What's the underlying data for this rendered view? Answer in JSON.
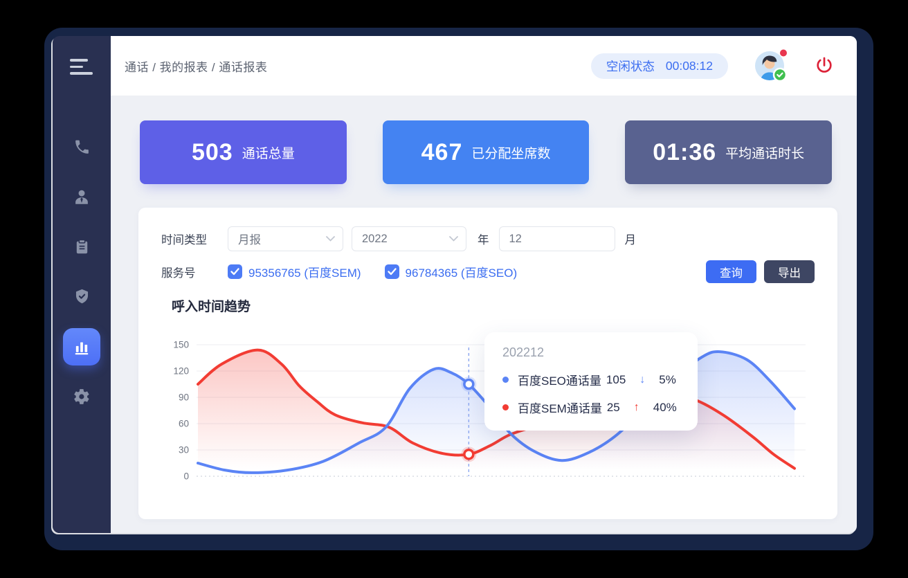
{
  "topbar": {
    "breadcrumb": "通话 / 我的报表 / 通话报表",
    "status_label": "空闲状态",
    "status_time": "00:08:12"
  },
  "sidebar": {
    "icons": [
      "phone-icon",
      "user-icon",
      "clipboard-icon",
      "shield-check-icon",
      "bar-chart-icon",
      "gear-icon"
    ],
    "active_index": 4
  },
  "stat_cards": [
    {
      "value": "503",
      "label": "通话总量",
      "color": "#5e60e7"
    },
    {
      "value": "467",
      "label": "已分配坐席数",
      "color": "#4483f2"
    },
    {
      "value": "01:36",
      "label": "平均通话时长",
      "color": "#596290"
    }
  ],
  "filters": {
    "time_type_label": "时间类型",
    "time_type_value": "月报",
    "year_value": "2022",
    "year_unit": "年",
    "month_value": "12",
    "month_unit": "月",
    "service_label": "服务号",
    "services": [
      {
        "label": "95356765 (百度SEM)",
        "checked": true
      },
      {
        "label": "96784365 (百度SEO)",
        "checked": true
      }
    ],
    "query_button": "查询",
    "export_button": "导出"
  },
  "chart_title": "呼入时间趋势",
  "colors": {
    "status_text": "#3b6df0",
    "power_icon": "#dc2238",
    "link_blue": "#3b6df0"
  },
  "chart_data": {
    "type": "line",
    "title": "呼入时间趋势",
    "ylim": [
      0,
      150
    ],
    "yticks": [
      0,
      30,
      60,
      90,
      120,
      150
    ],
    "grid": true,
    "series": [
      {
        "name": "百度SEO通话量",
        "color": "#5b84f5",
        "points": [
          [
            0.0,
            15
          ],
          [
            0.045,
            7
          ],
          [
            0.09,
            4
          ],
          [
            0.15,
            7
          ],
          [
            0.21,
            17
          ],
          [
            0.27,
            38
          ],
          [
            0.315,
            56
          ],
          [
            0.355,
            100
          ],
          [
            0.395,
            122
          ],
          [
            0.425,
            118
          ],
          [
            0.454,
            105
          ],
          [
            0.49,
            78
          ],
          [
            0.525,
            48
          ],
          [
            0.565,
            28
          ],
          [
            0.61,
            18
          ],
          [
            0.655,
            27
          ],
          [
            0.7,
            46
          ],
          [
            0.75,
            78
          ],
          [
            0.8,
            112
          ],
          [
            0.845,
            136
          ],
          [
            0.875,
            142
          ],
          [
            0.92,
            133
          ],
          [
            0.96,
            108
          ],
          [
            1.0,
            77
          ]
        ]
      },
      {
        "name": "百度SEM通话量",
        "color": "#f23c33",
        "points": [
          [
            0.0,
            105
          ],
          [
            0.04,
            128
          ],
          [
            0.1,
            144
          ],
          [
            0.14,
            128
          ],
          [
            0.17,
            103
          ],
          [
            0.2,
            85
          ],
          [
            0.23,
            70
          ],
          [
            0.275,
            61
          ],
          [
            0.32,
            56
          ],
          [
            0.36,
            38
          ],
          [
            0.41,
            26
          ],
          [
            0.454,
            25
          ],
          [
            0.49,
            35
          ],
          [
            0.525,
            48
          ],
          [
            0.58,
            60
          ],
          [
            0.64,
            74
          ],
          [
            0.7,
            85
          ],
          [
            0.745,
            92
          ],
          [
            0.78,
            94
          ],
          [
            0.83,
            88
          ],
          [
            0.88,
            70
          ],
          [
            0.93,
            45
          ],
          [
            0.965,
            25
          ],
          [
            1.0,
            9
          ]
        ]
      }
    ],
    "tooltip": {
      "x_label": "202212",
      "t": 0.454,
      "rows": [
        {
          "name": "百度SEO通话量",
          "value": 105,
          "arrow": "↓",
          "direction": "down",
          "change": "5%",
          "color": "#5b84f5"
        },
        {
          "name": "百度SEM通话量",
          "value": 25,
          "arrow": "↑",
          "direction": "up",
          "change": "40%",
          "color": "#f23c33"
        }
      ]
    }
  }
}
